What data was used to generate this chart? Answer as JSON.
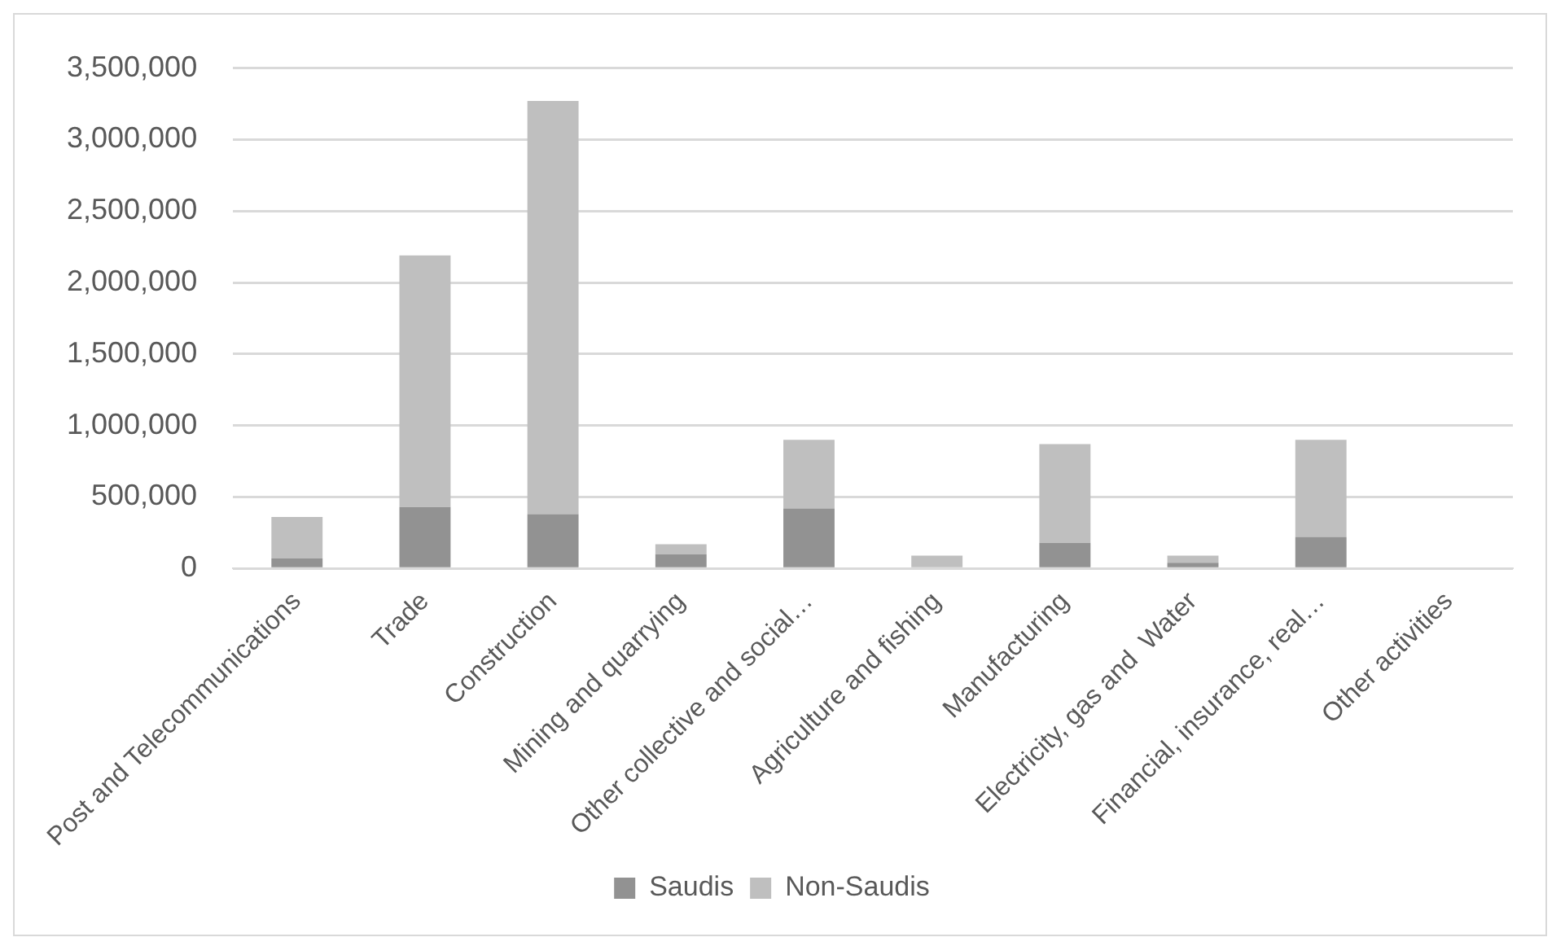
{
  "chart_data": {
    "type": "bar",
    "stacked": true,
    "categories": [
      "Post and Telecommunications",
      "Trade",
      "Construction",
      "Mining and quarrying",
      "Other collective and social…",
      "Agriculture and fishing",
      "Manufacturing",
      "Electricity, gas and  Water",
      "Financial, insurance, real…",
      "Other activities"
    ],
    "series": [
      {
        "name": "Saudis",
        "color": "#929292",
        "values": [
          70000,
          430000,
          380000,
          100000,
          420000,
          null,
          180000,
          40000,
          220000,
          0
        ]
      },
      {
        "name": "Non-Saudis",
        "color": "#bfbfbf",
        "values": [
          290000,
          1760000,
          2890000,
          70000,
          480000,
          90000,
          690000,
          50000,
          680000,
          0
        ]
      }
    ],
    "ylim": [
      0,
      3500000
    ],
    "yticks": [
      {
        "value": 0,
        "label": "0"
      },
      {
        "value": 500000,
        "label": "500,000"
      },
      {
        "value": 1000000,
        "label": "1,000,000"
      },
      {
        "value": 1500000,
        "label": "1,500,000"
      },
      {
        "value": 2000000,
        "label": "2,000,000"
      },
      {
        "value": 2500000,
        "label": "2,500,000"
      },
      {
        "value": 3000000,
        "label": "3,000,000"
      },
      {
        "value": 3500000,
        "label": "3,500,000"
      }
    ],
    "grid": "y",
    "legend": "bottom"
  }
}
